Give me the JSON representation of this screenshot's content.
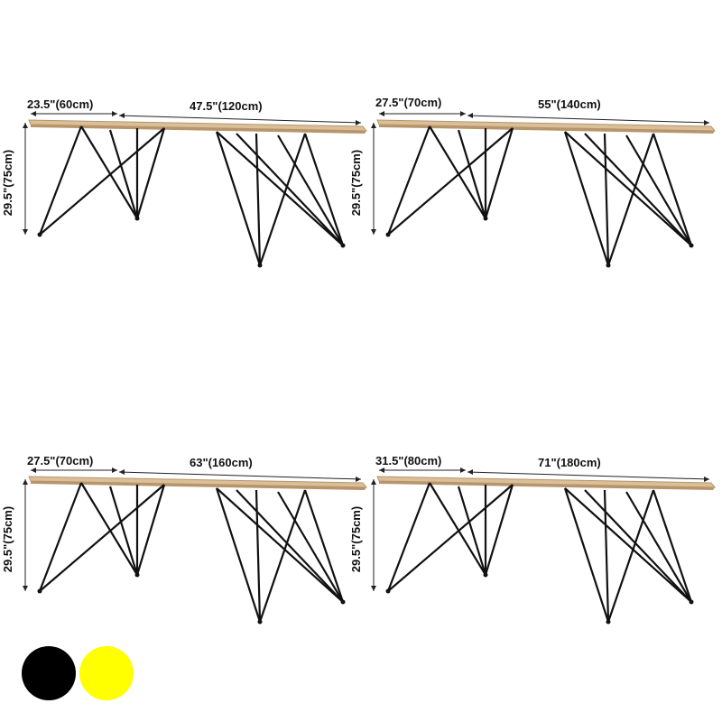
{
  "panels": [
    {
      "depth": "23.5\"(60cm)",
      "length": "47.5\"(120cm)",
      "height": "29.5\"(75cm)"
    },
    {
      "depth": "27.5\"(70cm)",
      "length": "55\"(140cm)",
      "height": "29.5\"(75cm)"
    },
    {
      "depth": "27.5\"(70cm)",
      "length": "63\"(160cm)",
      "height": "29.5\"(75cm)"
    },
    {
      "depth": "31.5\"(80cm)",
      "length": "71\"(180cm)",
      "height": "29.5\"(75cm)"
    }
  ],
  "swatches": [
    {
      "name": "black",
      "color": "#000000"
    },
    {
      "name": "yellow",
      "color": "#ffff00"
    }
  ],
  "colors": {
    "tabletop": "#d9c09a",
    "tabletop_edge": "#b8946a",
    "legs": "#111111",
    "dim_line": "#222222"
  }
}
